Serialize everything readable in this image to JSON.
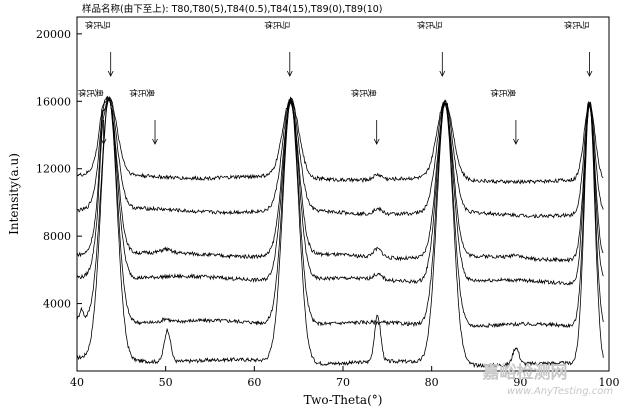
{
  "caption": "样品名称(由下至上): T80,T80(5),T84(0.5),T84(15),T89(0),T89(10)",
  "watermark": {
    "cn": "嘉峪检测网",
    "en": "www.AnyTesting.com"
  },
  "colors": {
    "line": "#000000",
    "frame": "#000000",
    "watermark": "#c8c8c8",
    "background": "#ffffff"
  },
  "chart_data": {
    "type": "line",
    "xlabel": "Two-Theta(°)",
    "ylabel": "Intensity(a.u)",
    "xlim": [
      40,
      100
    ],
    "ylim": [
      0,
      21000
    ],
    "x_ticks": [
      40,
      50,
      60,
      70,
      80,
      90,
      100
    ],
    "y_ticks": [
      4000,
      8000,
      12000,
      16000,
      20000
    ],
    "grid": false,
    "legend": "none",
    "series_order_note_text": "T80,T80(5),T84(0.5),T84(15),T89(0),T89(10)",
    "series": [
      {
        "name": "T80",
        "baseline": 700,
        "peaks": [
          {
            "x": 43.6,
            "h": 15500,
            "w": 0.9,
            "clip": 16200
          },
          {
            "x": 50.2,
            "h": 1900,
            "w": 0.35
          },
          {
            "x": 64.1,
            "h": 15500,
            "w": 0.9,
            "clip": 16200
          },
          {
            "x": 73.9,
            "h": 2700,
            "w": 0.35
          },
          {
            "x": 81.5,
            "h": 15500,
            "w": 0.9,
            "clip": 16200
          },
          {
            "x": 89.5,
            "h": 1000,
            "w": 0.35
          },
          {
            "x": 97.8,
            "h": 15500,
            "w": 0.6,
            "clip": 16200
          }
        ]
      },
      {
        "name": "T80(5)",
        "baseline": 3000,
        "peaks": [
          {
            "x": 40.5,
            "h": 600,
            "w": 0.2
          },
          {
            "x": 43.6,
            "h": 13200,
            "w": 0.9,
            "clip": 16200
          },
          {
            "x": 50.0,
            "h": 200,
            "w": 0.4
          },
          {
            "x": 64.1,
            "h": 13200,
            "w": 0.9,
            "clip": 16200
          },
          {
            "x": 81.5,
            "h": 13200,
            "w": 0.9,
            "clip": 16200
          },
          {
            "x": 97.8,
            "h": 13200,
            "w": 0.6,
            "clip": 16200
          }
        ]
      },
      {
        "name": "T84(0.5)",
        "baseline": 5600,
        "peaks": [
          {
            "x": 42.8,
            "h": 1400,
            "w": 0.25
          },
          {
            "x": 43.6,
            "h": 10600,
            "w": 0.9,
            "clip": 16200
          },
          {
            "x": 64.1,
            "h": 10600,
            "w": 0.9,
            "clip": 16200
          },
          {
            "x": 73.9,
            "h": 300,
            "w": 0.5
          },
          {
            "x": 81.5,
            "h": 10600,
            "w": 0.9,
            "clip": 16200
          },
          {
            "x": 97.8,
            "h": 10600,
            "w": 0.6,
            "clip": 16200
          }
        ]
      },
      {
        "name": "T84(15)",
        "baseline": 7000,
        "peaks": [
          {
            "x": 42.8,
            "h": 1600,
            "w": 0.25
          },
          {
            "x": 43.6,
            "h": 9200,
            "w": 0.9,
            "clip": 16200
          },
          {
            "x": 50.0,
            "h": 200,
            "w": 0.5
          },
          {
            "x": 64.1,
            "h": 9200,
            "w": 0.9,
            "clip": 16200
          },
          {
            "x": 73.9,
            "h": 500,
            "w": 0.5
          },
          {
            "x": 81.5,
            "h": 9200,
            "w": 0.9,
            "clip": 16200
          },
          {
            "x": 89.5,
            "h": 200,
            "w": 0.5
          },
          {
            "x": 97.8,
            "h": 9200,
            "w": 0.6,
            "clip": 16200
          }
        ]
      },
      {
        "name": "T89(0)",
        "baseline": 9600,
        "peaks": [
          {
            "x": 42.8,
            "h": 1000,
            "w": 0.3
          },
          {
            "x": 43.6,
            "h": 6600,
            "w": 0.9,
            "clip": 16200
          },
          {
            "x": 64.1,
            "h": 6600,
            "w": 0.9,
            "clip": 16200
          },
          {
            "x": 73.9,
            "h": 300,
            "w": 0.5
          },
          {
            "x": 81.5,
            "h": 6600,
            "w": 0.9,
            "clip": 16200
          },
          {
            "x": 97.8,
            "h": 6600,
            "w": 0.6,
            "clip": 16200
          }
        ]
      },
      {
        "name": "T89(10)",
        "baseline": 11600,
        "peaks": [
          {
            "x": 42.8,
            "h": 700,
            "w": 0.3
          },
          {
            "x": 43.6,
            "h": 4600,
            "w": 0.9,
            "clip": 16200
          },
          {
            "x": 64.1,
            "h": 4600,
            "w": 0.9,
            "clip": 16200
          },
          {
            "x": 73.9,
            "h": 300,
            "w": 0.5
          },
          {
            "x": 81.5,
            "h": 4600,
            "w": 0.9,
            "clip": 16200
          },
          {
            "x": 97.8,
            "h": 4600,
            "w": 0.6,
            "clip": 16200
          }
        ]
      }
    ],
    "annotations": [
      {
        "label": "马氏体",
        "x": 43.8,
        "arrow": "down"
      },
      {
        "label": "奥氏体",
        "x": 43.0,
        "arrow": "down"
      },
      {
        "label": "奥氏体",
        "x": 48.8,
        "arrow": "down"
      },
      {
        "label": "马氏体",
        "x": 64.0,
        "arrow": "down"
      },
      {
        "label": "奥氏体",
        "x": 73.8,
        "arrow": "down"
      },
      {
        "label": "马氏体",
        "x": 81.2,
        "arrow": "down"
      },
      {
        "label": "奥氏体",
        "x": 89.5,
        "arrow": "down"
      },
      {
        "label": "马氏体",
        "x": 97.8,
        "arrow": "down"
      }
    ]
  }
}
